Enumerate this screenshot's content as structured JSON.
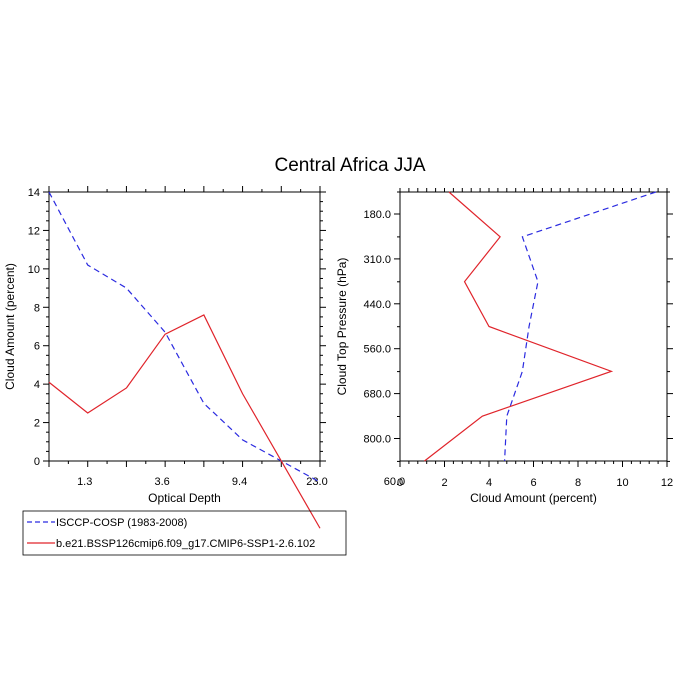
{
  "title": "Central Africa JJA",
  "colors": {
    "obs": "#2b2be0",
    "model": "#e0242b"
  },
  "legend": {
    "entries": [
      {
        "label": "ISCCP-COSP (1983-2008)",
        "style": "dashed",
        "color": "#2b2be0"
      },
      {
        "label": "b.e21.BSSP126cmip6.f09_g17.CMIP6-SSP1-2.6.102",
        "style": "solid",
        "color": "#e0242b"
      }
    ]
  },
  "chart_data": [
    {
      "type": "line",
      "xlabel": "Optical Depth",
      "ylabel": "Cloud Amount (percent)",
      "x_ticklabels": [
        "1.3",
        "3.6",
        "9.4",
        "23.0",
        "60.0"
      ],
      "y_ticks": [
        0,
        2,
        4,
        6,
        8,
        10,
        12,
        14
      ],
      "ylim": [
        0,
        14
      ],
      "bins": 7,
      "series": [
        {
          "name": "ISCCP-COSP (1983-2008)",
          "x": [
            0,
            1,
            2,
            3,
            4,
            5,
            6
          ],
          "y": [
            14.0,
            10.2,
            9.0,
            6.7,
            3.0,
            1.1,
            0.0
          ],
          "visible_points": 6,
          "style": "dashed"
        },
        {
          "name": "b.e21.BSSP126cmip6.f09_g17.CMIP6-SSP1-2.6.102",
          "x": [
            0,
            1,
            2,
            3,
            4,
            5,
            6
          ],
          "y": [
            4.1,
            2.5,
            3.8,
            6.6,
            7.6,
            3.5,
            0.0
          ],
          "visible_points": 6,
          "style": "solid"
        }
      ]
    },
    {
      "type": "line",
      "xlabel": "Cloud Amount (percent)",
      "ylabel": "Cloud Top Pressure (hPa)",
      "xlim": [
        0,
        12
      ],
      "x_ticks": [
        0,
        2,
        4,
        6,
        8,
        10,
        12
      ],
      "y_ticklabels": [
        "180.0",
        "310.0",
        "440.0",
        "560.0",
        "680.0",
        "800.0"
      ],
      "series": [
        {
          "name": "ISCCP-COSP (1983-2008)",
          "x": [
            11.5,
            5.5,
            6.2,
            5.8,
            5.5,
            4.8,
            4.7
          ],
          "y": [
            0,
            1,
            2,
            3,
            4,
            5,
            6
          ],
          "style": "dashed"
        },
        {
          "name": "b.e21.BSSP126cmip6.f09_g17.CMIP6-SSP1-2.6.102",
          "x": [
            2.2,
            4.5,
            2.9,
            4.0,
            9.5,
            3.7,
            1.1
          ],
          "y": [
            0,
            1,
            2,
            3,
            4,
            5,
            6
          ],
          "style": "solid"
        }
      ]
    }
  ]
}
